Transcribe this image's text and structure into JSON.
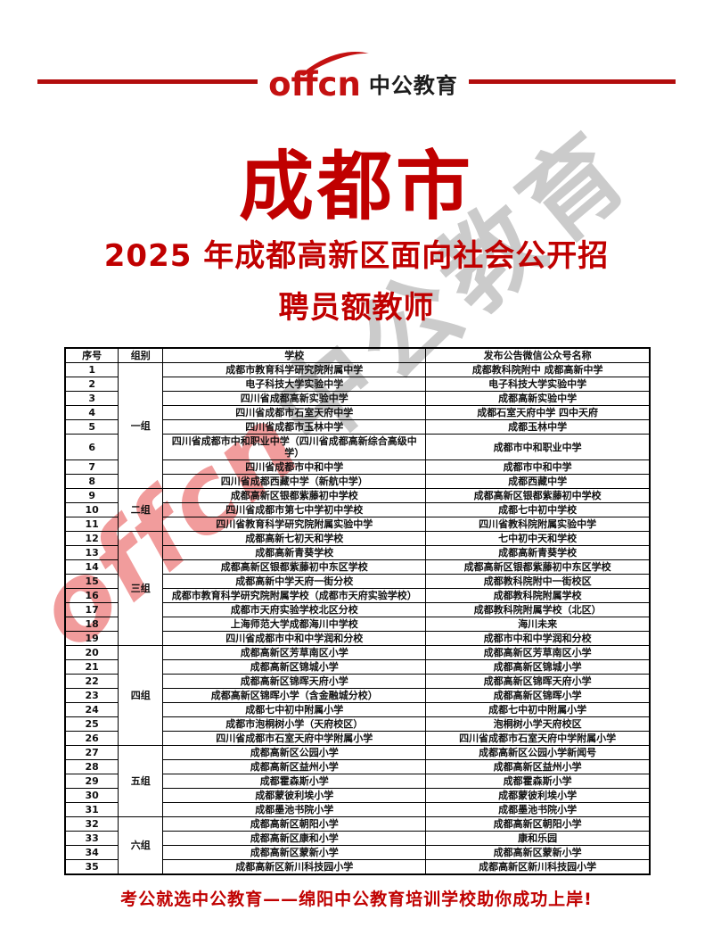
{
  "logo": {
    "brand_latin": "offcn",
    "brand_cn": "中公教育"
  },
  "page": {
    "title": "成都市",
    "subtitle_line1": "2025 年成都高新区面向社会公开招",
    "subtitle_line2": "聘员额教师"
  },
  "watermark": {
    "latin": "offcn",
    "cn": "中公教育"
  },
  "table": {
    "headers": [
      "序号",
      "组别",
      "学校",
      "发布公告微信公众号名称"
    ],
    "groups": [
      {
        "label": "一组",
        "rows": [
          1,
          8
        ]
      },
      {
        "label": "二组",
        "rows": [
          9,
          11
        ]
      },
      {
        "label": "三组",
        "rows": [
          12,
          19
        ]
      },
      {
        "label": "四组",
        "rows": [
          20,
          26
        ]
      },
      {
        "label": "五组",
        "rows": [
          27,
          31
        ]
      },
      {
        "label": "六组",
        "rows": [
          32,
          35
        ]
      }
    ],
    "rows": [
      {
        "no": "1",
        "school": "成都市教育科学研究院附属中学",
        "account": "成都教科院附中 成都高新中学"
      },
      {
        "no": "2",
        "school": "电子科技大学实验中学",
        "account": "电子科技大学实验中学"
      },
      {
        "no": "3",
        "school": "四川省成都高新实验中学",
        "account": "成都高新实验中学"
      },
      {
        "no": "4",
        "school": "四川省成都市石室天府中学",
        "account": "成都石室天府中学 四中天府"
      },
      {
        "no": "5",
        "school": "四川省成都市玉林中学",
        "account": "成都玉林中学"
      },
      {
        "no": "6",
        "school": "四川省成都市中和职业中学（四川省成都高新综合高级中学）",
        "account": "成都市中和职业中学"
      },
      {
        "no": "7",
        "school": "四川省成都市中和中学",
        "account": "成都市中和中学"
      },
      {
        "no": "8",
        "school": "四川省成都西藏中学（新航中学）",
        "account": "成都西藏中学"
      },
      {
        "no": "9",
        "school": "成都高新区银都紫藤初中学校",
        "account": "成都高新区银都紫藤初中学校"
      },
      {
        "no": "10",
        "school": "四川省成都市第七中学初中学校",
        "account": "成都七中初中学校"
      },
      {
        "no": "11",
        "school": "四川省教育科学研究院附属实验中学",
        "account": "四川省教科院附属实验中学"
      },
      {
        "no": "12",
        "school": "成都高新七初天和学校",
        "account": "七中初中天和学校"
      },
      {
        "no": "13",
        "school": "成都高新青葵学校",
        "account": "成都高新青葵学校"
      },
      {
        "no": "14",
        "school": "成都高新区银都紫藤初中东区学校",
        "account": "成都高新区银都紫藤初中东区学校"
      },
      {
        "no": "15",
        "school": "成都高新中学天府一街分校",
        "account": "成都教科院附中一街校区"
      },
      {
        "no": "16",
        "school": "成都市教育科学研究院附属学校（成都市天府实验学校）",
        "account": "成都教科院附属学校"
      },
      {
        "no": "17",
        "school": "成都市天府实验学校北区分校",
        "account": "成都教科院附属学校（北区）"
      },
      {
        "no": "18",
        "school": "上海师范大学成都海川中学校",
        "account": "海川未来"
      },
      {
        "no": "19",
        "school": "四川省成都市中和中学润和分校",
        "account": "成都市中和中学润和分校"
      },
      {
        "no": "20",
        "school": "成都高新区芳草南区小学",
        "account": "成都高新区芳草南区小学"
      },
      {
        "no": "21",
        "school": "成都高新区锦城小学",
        "account": "成都高新区锦城小学"
      },
      {
        "no": "22",
        "school": "成都高新区锦晖天府小学",
        "account": "成都高新区锦晖天府小学"
      },
      {
        "no": "23",
        "school": "成都高新区锦晖小学（含金融城分校）",
        "account": "成都高新区锦晖小学"
      },
      {
        "no": "24",
        "school": "成都七中初中附属小学",
        "account": "成都七中初中附属小学"
      },
      {
        "no": "25",
        "school": "成都市泡桐树小学（天府校区）",
        "account": "泡桐树小学天府校区"
      },
      {
        "no": "26",
        "school": "四川省成都市石室天府中学附属小学",
        "account": "四川省成都市石室天府中学附属小学"
      },
      {
        "no": "27",
        "school": "成都高新区公园小学",
        "account": "成都高新区公园小学新闻号"
      },
      {
        "no": "28",
        "school": "成都高新区益州小学",
        "account": "成都高新区益州小学"
      },
      {
        "no": "29",
        "school": "成都霍森斯小学",
        "account": "成都霍森斯小学"
      },
      {
        "no": "30",
        "school": "成都蒙彼利埃小学",
        "account": "成都蒙彼利埃小学"
      },
      {
        "no": "31",
        "school": "成都墨池书院小学",
        "account": "成都墨池书院小学"
      },
      {
        "no": "32",
        "school": "成都高新区朝阳小学",
        "account": "成都高新区朝阳小学"
      },
      {
        "no": "33",
        "school": "成都高新区康和小学",
        "account": "康和乐园"
      },
      {
        "no": "34",
        "school": "成都高新区蒙新小学",
        "account": "成都高新区蒙新小学"
      },
      {
        "no": "35",
        "school": "成都高新区新川科技园小学",
        "account": "成都高新区新川科技园小学"
      }
    ]
  },
  "footer": {
    "slogan": "考公就选中公教育——绵阳中公教育培训学校助你成功上岸!"
  },
  "colors": {
    "brand_red": "#c00000",
    "logo_red": "#c41111",
    "line_red": "#b20d0d",
    "border_black": "#000000",
    "watermark_red": "#ef8b8b",
    "watermark_gray": "#bababa"
  }
}
